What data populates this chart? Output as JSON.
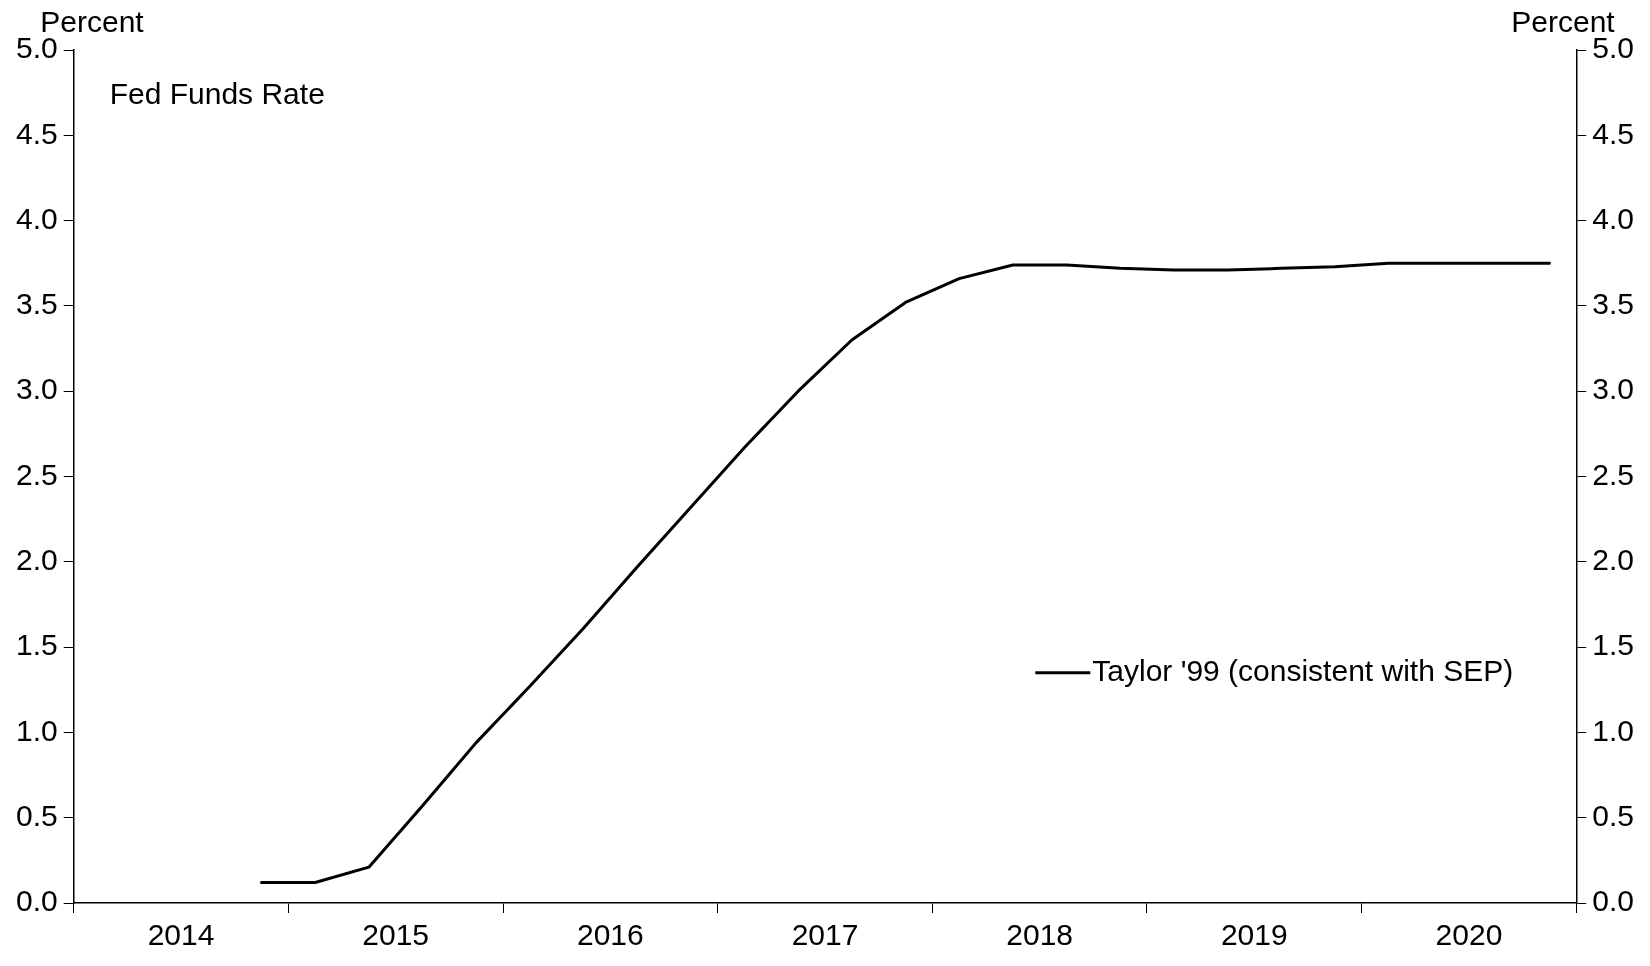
{
  "chart_data": {
    "type": "line",
    "title": "Fed Funds Rate",
    "ylabel": "Percent",
    "y2label": "Percent",
    "x": [
      2014.875,
      2015.125,
      2015.375,
      2015.625,
      2015.875,
      2016.125,
      2016.375,
      2016.625,
      2016.875,
      2017.125,
      2017.375,
      2017.625,
      2017.875,
      2018.125,
      2018.375,
      2018.625,
      2018.875,
      2019.125,
      2019.375,
      2019.625,
      2019.875,
      2020.125,
      2020.375,
      2020.625,
      2020.875
    ],
    "series": [
      {
        "name": "Taylor '99 (consistent with SEP)",
        "color": "#000000",
        "values": [
          0.12,
          0.12,
          0.21,
          0.57,
          0.94,
          1.27,
          1.61,
          1.97,
          2.32,
          2.67,
          3.0,
          3.3,
          3.52,
          3.66,
          3.74,
          3.74,
          3.72,
          3.71,
          3.71,
          3.72,
          3.73,
          3.75,
          3.75,
          3.75,
          3.75
        ]
      }
    ],
    "xlim": [
      2014,
      2021
    ],
    "xticks": [
      {
        "value": 2014,
        "label": null
      },
      {
        "value": 2014.5,
        "label": "2014"
      },
      {
        "value": 2015,
        "label": null
      },
      {
        "value": 2015.5,
        "label": "2015"
      },
      {
        "value": 2016,
        "label": null
      },
      {
        "value": 2016.5,
        "label": "2016"
      },
      {
        "value": 2017,
        "label": null
      },
      {
        "value": 2017.5,
        "label": "2017"
      },
      {
        "value": 2018,
        "label": null
      },
      {
        "value": 2018.5,
        "label": "2018"
      },
      {
        "value": 2019,
        "label": null
      },
      {
        "value": 2019.5,
        "label": "2019"
      },
      {
        "value": 2020,
        "label": null
      },
      {
        "value": 2020.5,
        "label": "2020"
      },
      {
        "value": 2021,
        "label": null
      }
    ],
    "ylim": [
      0,
      5
    ],
    "yticks": [
      {
        "value": 0,
        "label": "0.0"
      },
      {
        "value": 0.5,
        "label": "0.5"
      },
      {
        "value": 1,
        "label": "1.0"
      },
      {
        "value": 1.5,
        "label": "1.5"
      },
      {
        "value": 2,
        "label": "2.0"
      },
      {
        "value": 2.5,
        "label": "2.5"
      },
      {
        "value": 3,
        "label": "3.0"
      },
      {
        "value": 3.5,
        "label": "3.5"
      },
      {
        "value": 4,
        "label": "4.0"
      },
      {
        "value": 4.5,
        "label": "4.5"
      },
      {
        "value": 5,
        "label": "5.0"
      }
    ],
    "y2lim": [
      0,
      5
    ],
    "y2ticks": [
      {
        "value": 0,
        "label": "0.0"
      },
      {
        "value": 0.5,
        "label": "0.5"
      },
      {
        "value": 1,
        "label": "1.0"
      },
      {
        "value": 1.5,
        "label": "1.5"
      },
      {
        "value": 2,
        "label": "2.0"
      },
      {
        "value": 2.5,
        "label": "2.5"
      },
      {
        "value": 3,
        "label": "3.0"
      },
      {
        "value": 3.5,
        "label": "3.5"
      },
      {
        "value": 4,
        "label": "4.0"
      },
      {
        "value": 4.5,
        "label": "4.5"
      },
      {
        "value": 5,
        "label": "5.0"
      }
    ],
    "grid": false,
    "legend": "bottom right",
    "marker": "none",
    "line_style": "solid"
  }
}
